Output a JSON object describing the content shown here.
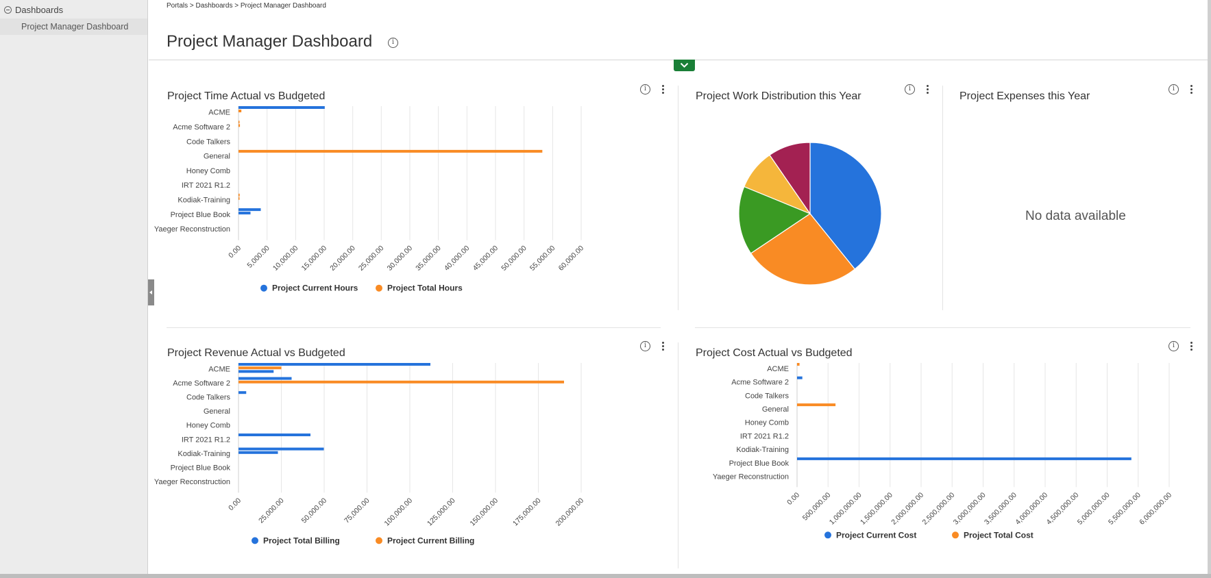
{
  "sidebar": {
    "group_label": "Dashboards",
    "items": [
      {
        "label": "Project Manager Dashboard"
      }
    ]
  },
  "breadcrumb": "Portals > Dashboards > Project Manager Dashboard",
  "page": {
    "title": "Project Manager Dashboard"
  },
  "icons": {
    "info": "info-icon",
    "more": "kebab-menu-icon",
    "expand": "chevron-down-icon",
    "collapse": "minus-circle-icon"
  },
  "colors": {
    "blue": "#2573dc",
    "orange": "#f98b24",
    "green": "#3a9a23",
    "yellow": "#f5b63b",
    "maroon": "#a32152",
    "expand_button": "#1a7f37"
  },
  "widgets": {
    "time": {
      "title": "Project Time Actual vs Budgeted"
    },
    "work": {
      "title": "Project Work Distribution this Year"
    },
    "expenses": {
      "title": "Project Expenses this Year",
      "empty_text": "No data available"
    },
    "revenue": {
      "title": "Project Revenue Actual vs Budgeted"
    },
    "cost": {
      "title": "Project Cost Actual vs Budgeted"
    }
  },
  "chart_data": [
    {
      "id": "time",
      "type": "bar",
      "orientation": "horizontal",
      "title": "Project Time Actual vs Budgeted",
      "categories": [
        "ACME",
        "Acme Software 2",
        "Code Talkers",
        "General",
        "Honey Comb",
        "IRT 2021 R1.2",
        "Kodiak-Training",
        "Project Blue Book",
        "Yaeger Reconstruction"
      ],
      "xlim": [
        0,
        60000
      ],
      "xticks": [
        "0.00",
        "5,000.00",
        "10,000.00",
        "15,000.00",
        "20,000.00",
        "25,000.00",
        "30,000.00",
        "35,000.00",
        "40,000.00",
        "45,000.00",
        "50,000.00",
        "55,000.00",
        "60,000.00"
      ],
      "grid": true,
      "legend_position": "bottom",
      "bars": [
        {
          "category": "ACME",
          "series": "Project Current Hours",
          "value": 15100
        },
        {
          "category": "ACME",
          "series": "Project Total Hours",
          "value": 500
        },
        {
          "category": "Acme Software 2",
          "series": "Project Total Hours",
          "value": 150
        },
        {
          "category": "Acme Software 2",
          "series": "Project Total Hours",
          "value": 250
        },
        {
          "category": "General",
          "series": "Project Total Hours",
          "value": 53200
        },
        {
          "category": "Kodiak-Training",
          "series": "Project Total Hours",
          "value": 200
        },
        {
          "category": "Kodiak-Training",
          "series": "Project Total Hours",
          "value": 150
        },
        {
          "category": "Project Blue Book",
          "series": "Project Current Hours",
          "value": 3900
        },
        {
          "category": "Project Blue Book",
          "series": "Project Current Hours",
          "value": 2100
        }
      ],
      "legend": [
        {
          "name": "Project Current Hours",
          "color": "#2573dc"
        },
        {
          "name": "Project Total Hours",
          "color": "#f98b24"
        }
      ]
    },
    {
      "id": "work",
      "type": "pie",
      "title": "Project Work Distribution this Year",
      "slices": [
        {
          "value": 39.2,
          "color": "#2573dc"
        },
        {
          "value": 26.4,
          "color": "#f98b24"
        },
        {
          "value": 15.6,
          "color": "#3a9a23"
        },
        {
          "value": 9.2,
          "color": "#f5b63b"
        },
        {
          "value": 9.6,
          "color": "#a32152"
        }
      ]
    },
    {
      "id": "revenue",
      "type": "bar",
      "orientation": "horizontal",
      "title": "Project Revenue Actual vs Budgeted",
      "categories": [
        "ACME",
        "Acme Software 2",
        "Code Talkers",
        "General",
        "Honey Comb",
        "IRT 2021 R1.2",
        "Kodiak-Training",
        "Project Blue Book",
        "Yaeger Reconstruction"
      ],
      "xlim": [
        0,
        200000
      ],
      "xticks": [
        "0.00",
        "25,000.00",
        "50,000.00",
        "75,000.00",
        "100,000.00",
        "125,000.00",
        "150,000.00",
        "175,000.00",
        "200,000.00"
      ],
      "grid": true,
      "legend_position": "bottom",
      "bars": [
        {
          "category": "ACME",
          "series": "Project Total Billing",
          "value": 112000
        },
        {
          "category": "ACME",
          "series": "Project Current Billing",
          "value": 25000
        },
        {
          "category": "ACME",
          "series": "Project Total Billing",
          "value": 20500
        },
        {
          "category": "Acme Software 2",
          "series": "Project Total Billing",
          "value": 31000
        },
        {
          "category": "Acme Software 2",
          "series": "Project Current Billing",
          "value": 190000
        },
        {
          "category": "Code Talkers",
          "series": "Project Total Billing",
          "value": 4500
        },
        {
          "category": "IRT 2021 R1.2",
          "series": "Project Total Billing",
          "value": 42000
        },
        {
          "category": "Kodiak-Training",
          "series": "Project Total Billing",
          "value": 49800
        },
        {
          "category": "Kodiak-Training",
          "series": "Project Total Billing",
          "value": 23000
        }
      ],
      "legend": [
        {
          "name": "Project Total Billing",
          "color": "#2573dc"
        },
        {
          "name": "Project Current Billing",
          "color": "#f98b24"
        }
      ]
    },
    {
      "id": "cost",
      "type": "bar",
      "orientation": "horizontal",
      "title": "Project Cost Actual vs Budgeted",
      "categories": [
        "ACME",
        "Acme Software 2",
        "Code Talkers",
        "General",
        "Honey Comb",
        "IRT 2021 R1.2",
        "Kodiak-Training",
        "Project Blue Book",
        "Yaeger Reconstruction"
      ],
      "xlim": [
        0,
        6000000
      ],
      "xticks": [
        "0.00",
        "500,000.00",
        "1,000,000.00",
        "1,500,000.00",
        "2,000,000.00",
        "2,500,000.00",
        "3,000,000.00",
        "3,500,000.00",
        "4,000,000.00",
        "4,500,000.00",
        "5,000,000.00",
        "5,500,000.00",
        "6,000,000.00"
      ],
      "grid": true,
      "legend_position": "bottom",
      "bars": [
        {
          "category": "ACME",
          "series": "Project Total Cost",
          "value": 40000
        },
        {
          "category": "Acme Software 2",
          "series": "Project Current Cost",
          "value": 85000
        },
        {
          "category": "General",
          "series": "Project Total Cost",
          "value": 620000
        },
        {
          "category": "Project Blue Book",
          "series": "Project Current Cost",
          "value": 5390000
        }
      ],
      "legend": [
        {
          "name": "Project Current Cost",
          "color": "#2573dc"
        },
        {
          "name": "Project Total Cost",
          "color": "#f98b24"
        }
      ]
    }
  ]
}
